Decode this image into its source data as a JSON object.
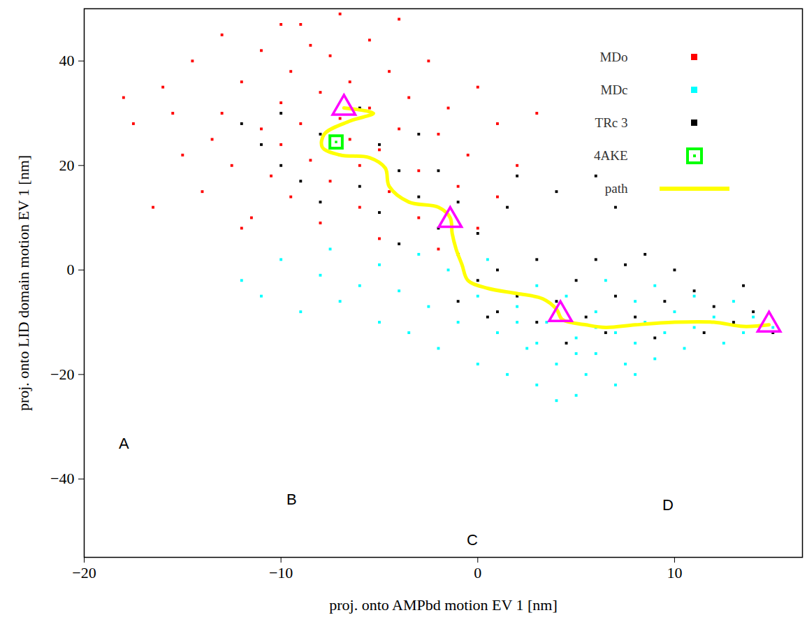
{
  "chart_data": {
    "type": "scatter",
    "x_label": "proj. onto AMPbd motion EV 1 [nm]",
    "y_label": "proj. onto LID domain motion EV 1 [nm]",
    "xlim": [
      -20,
      16.5
    ],
    "ylim": [
      -55,
      50
    ],
    "xticks": [
      -20,
      -10,
      0,
      10
    ],
    "yticks": [
      -40,
      -20,
      0,
      20,
      40
    ],
    "legend": "top-right",
    "annotations": [
      "A",
      "B",
      "C",
      "D"
    ],
    "series": [
      {
        "name": "MDo",
        "color": "#ff0000",
        "type": "scatter",
        "marker": "square",
        "x": [
          -17.5,
          -16,
          -15,
          -14.5,
          -14,
          -13,
          -13,
          -12.5,
          -12,
          -11.5,
          -11,
          -11,
          -10.5,
          -10,
          -10,
          -9.5,
          -9.5,
          -9,
          -9,
          -8.5,
          -8,
          -8,
          -7.5,
          -7.5,
          -7,
          -6.5,
          -6.5,
          -6,
          -6,
          -5.5,
          -5.5,
          -5,
          -5,
          -4.5,
          -4.5,
          -4,
          -3.5,
          -3,
          -3,
          -2.5,
          -2,
          -2,
          -1.5,
          -1,
          -0.5,
          0,
          0,
          1,
          1,
          2,
          3,
          -16.5,
          -15.5,
          -12,
          -18,
          -10,
          -7,
          -13.5,
          -8.5,
          -4
        ],
        "y": [
          28,
          35,
          22,
          40,
          15,
          30,
          45,
          20,
          36,
          10,
          27,
          42,
          18,
          32,
          24,
          38,
          14,
          28,
          47,
          21,
          34,
          9,
          41,
          17,
          29,
          25,
          36,
          12,
          20,
          44,
          31,
          23,
          6,
          38,
          15,
          27,
          33,
          19,
          10,
          40,
          26,
          4,
          31,
          16,
          22,
          35,
          8,
          28,
          14,
          20,
          30,
          12,
          30,
          8,
          33,
          47,
          49,
          25,
          43,
          48
        ]
      },
      {
        "name": "MDc",
        "color": "#00ffff",
        "type": "scatter",
        "marker": "square",
        "x": [
          -12,
          -11,
          -10,
          -9,
          -8,
          -7.5,
          -7,
          -6,
          -5,
          -5,
          -4,
          -3.5,
          -3,
          -2.5,
          -2,
          -1.5,
          -1,
          0,
          0,
          0.5,
          1,
          1.5,
          2,
          2.5,
          3,
          3,
          3.5,
          4,
          4.5,
          5,
          5,
          5.5,
          6,
          6,
          6.5,
          7,
          7,
          7.5,
          8,
          8,
          8.5,
          9,
          9,
          9.5,
          10,
          10.5,
          11,
          11,
          12,
          12.5,
          13,
          13.5,
          14,
          15,
          4,
          2,
          6,
          8,
          5,
          3
        ],
        "y": [
          -2,
          -5,
          2,
          -8,
          -1,
          4,
          -6,
          -3,
          1,
          -10,
          -4,
          -12,
          3,
          -7,
          -15,
          0,
          -10,
          -5,
          -18,
          2,
          -12,
          -20,
          -7,
          -15,
          -3,
          -22,
          -10,
          -18,
          -5,
          -13,
          -24,
          -20,
          -8,
          -16,
          -2,
          -12,
          -22,
          -18,
          -6,
          -14,
          -10,
          -3,
          -17,
          -12,
          -8,
          -15,
          -5,
          -11,
          -9,
          -14,
          -6,
          -12,
          -9,
          -11,
          -25,
          -10,
          -11,
          -20,
          -16,
          -14
        ]
      },
      {
        "name": "TRc 3",
        "color": "#000000",
        "type": "scatter",
        "marker": "square",
        "x": [
          -12,
          -11,
          -10,
          -10,
          -9,
          -8,
          -8,
          -7,
          -6,
          -6,
          -5,
          -5,
          -4,
          -4,
          -3,
          -3,
          -2,
          -2,
          -1,
          -1,
          0,
          0,
          0.5,
          1,
          1.5,
          2,
          2,
          3,
          3,
          4,
          4.5,
          5,
          5.5,
          6,
          6,
          6.5,
          7,
          7.5,
          8,
          8.5,
          9,
          9.5,
          10,
          10.5,
          11,
          11.5,
          12,
          13,
          13.5,
          14,
          15,
          1,
          -1,
          4,
          7
        ],
        "y": [
          28,
          24,
          20,
          30,
          17,
          26,
          13,
          22,
          31,
          16,
          24,
          11,
          19,
          5,
          14,
          26,
          8,
          19,
          3,
          13,
          -2,
          7,
          -9,
          0,
          12,
          -5,
          18,
          -10,
          2,
          -6,
          -14,
          -2,
          -9,
          2,
          18,
          -12,
          -5,
          1,
          -9,
          3,
          -13,
          -6,
          0,
          -10,
          -4,
          -12,
          -7,
          -10,
          -3,
          -8,
          -12,
          -8,
          -6,
          15,
          12
        ]
      },
      {
        "name": "4AKE",
        "color": "#00ff00",
        "type": "scatter",
        "marker": "square_open",
        "x": [
          -7.2
        ],
        "y": [
          24.5
        ]
      },
      {
        "name": "path",
        "color": "#ffff00",
        "type": "line",
        "line_style": "solid",
        "x": [
          -6.8,
          -5.3,
          -6.5,
          -7.8,
          -7.9,
          -7,
          -5.5,
          -4.7,
          -4.5,
          -3.5,
          -2,
          -1.4,
          -1.3,
          -1.1,
          -0.8,
          -0.5,
          0.5,
          2,
          3.3,
          4,
          4.3,
          5.5,
          6.5,
          8,
          10,
          12,
          13.5,
          14.8
        ],
        "y": [
          31,
          30,
          28.5,
          26,
          23.5,
          22,
          21.5,
          19.5,
          16,
          13,
          12,
          10,
          7,
          4,
          1,
          -2,
          -3.5,
          -4.5,
          -5.5,
          -7.5,
          -9.5,
          -10.5,
          -11,
          -10.5,
          -10,
          -10,
          -10.8,
          -10.5
        ]
      }
    ],
    "waypoints": {
      "color": "#ff00ff",
      "marker": "triangle",
      "x": [
        -6.8,
        -1.4,
        4.2,
        14.8
      ],
      "y": [
        31,
        9.5,
        -8.5,
        -10.5
      ]
    }
  }
}
